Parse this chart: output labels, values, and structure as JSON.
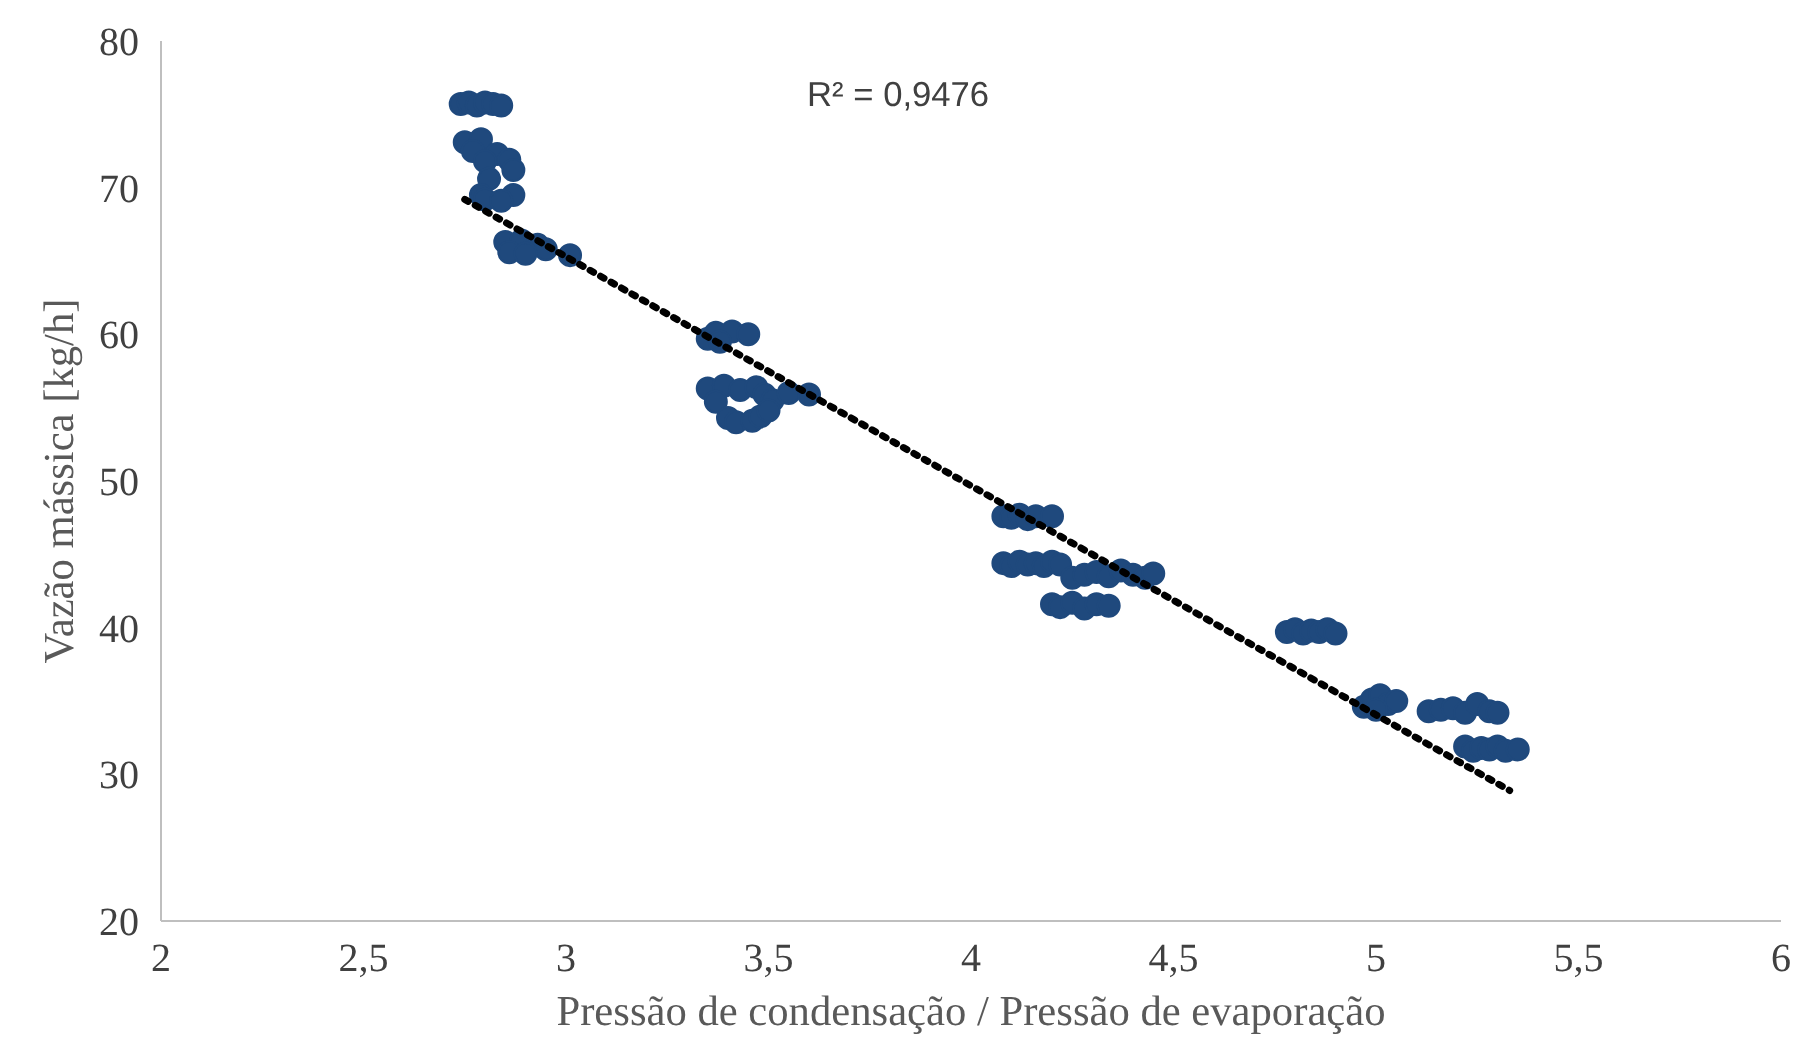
{
  "chart_data": {
    "type": "scatter",
    "xlabel": "Pressão de condensação / Pressão de evaporação",
    "ylabel": "Vazão mássica [kg/h]",
    "annotations": [
      "R² = 0,9476"
    ],
    "xlim": [
      2,
      6
    ],
    "ylim": [
      20,
      80
    ],
    "xticks": [
      2,
      {
        "value": 2.5,
        "label": "2,5"
      },
      3,
      {
        "value": 3.5,
        "label": "3,5"
      },
      4,
      {
        "value": 4.5,
        "label": "4,5"
      },
      5,
      {
        "value": 5.5,
        "label": "5,5"
      },
      6
    ],
    "yticks": [
      20,
      30,
      40,
      50,
      60,
      70,
      80
    ],
    "grid": false,
    "series": [
      {
        "color": "#1f497d",
        "marker": "circle",
        "x": [
          2.74,
          2.76,
          2.78,
          2.8,
          2.82,
          2.84,
          2.75,
          2.79,
          2.83,
          2.77,
          2.8,
          2.86,
          2.87,
          2.81,
          2.79,
          2.87,
          2.8,
          2.84,
          2.85,
          2.89,
          2.93,
          2.95,
          2.86,
          2.9,
          3.01,
          3.35,
          3.37,
          3.41,
          3.45,
          3.38,
          3.35,
          3.39,
          3.43,
          3.47,
          3.49,
          3.51,
          3.37,
          3.4,
          3.42,
          3.46,
          3.48,
          3.5,
          3.55,
          3.6,
          4.08,
          4.1,
          4.12,
          4.14,
          4.16,
          4.2,
          4.08,
          4.1,
          4.12,
          4.14,
          4.16,
          4.18,
          4.2,
          4.22,
          4.25,
          4.28,
          4.31,
          4.34,
          4.37,
          4.4,
          4.43,
          4.45,
          4.2,
          4.22,
          4.25,
          4.28,
          4.31,
          4.34,
          4.78,
          4.8,
          4.82,
          4.84,
          4.86,
          4.88,
          4.9,
          4.97,
          4.99,
          5.01,
          5.03,
          5.05,
          5.0,
          5.13,
          5.16,
          5.19,
          5.22,
          5.25,
          5.28,
          5.3,
          5.22,
          5.24,
          5.26,
          5.28,
          5.3,
          5.32,
          5.35
        ],
        "values": [
          75.7,
          75.8,
          75.6,
          75.8,
          75.7,
          75.6,
          73.1,
          73.3,
          72.3,
          72.5,
          71.8,
          71.9,
          71.2,
          70.6,
          69.5,
          69.5,
          69.2,
          69.1,
          66.3,
          66.4,
          66.1,
          65.8,
          65.6,
          65.5,
          65.4,
          59.7,
          60.1,
          60.2,
          60.0,
          59.5,
          56.3,
          56.5,
          56.2,
          56.4,
          55.9,
          55.5,
          55.4,
          54.3,
          54.0,
          54.1,
          54.4,
          54.8,
          56.0,
          55.9,
          47.6,
          47.5,
          47.7,
          47.4,
          47.6,
          47.6,
          44.4,
          44.2,
          44.5,
          44.3,
          44.4,
          44.2,
          44.5,
          44.3,
          43.4,
          43.6,
          43.8,
          43.5,
          43.9,
          43.6,
          43.4,
          43.7,
          41.6,
          41.4,
          41.7,
          41.3,
          41.6,
          41.5,
          39.7,
          39.9,
          39.6,
          39.8,
          39.7,
          39.9,
          39.6,
          34.6,
          35.1,
          35.4,
          34.8,
          35.0,
          34.4,
          34.3,
          34.4,
          34.5,
          34.2,
          34.8,
          34.3,
          34.2,
          31.9,
          31.6,
          31.8,
          31.7,
          31.9,
          31.6,
          31.7
        ]
      },
      {
        "type": "line",
        "line_style": "dotted",
        "color": "#000000",
        "x": [
          2.75,
          5.33
        ],
        "values": [
          69.2,
          28.9
        ]
      }
    ]
  }
}
